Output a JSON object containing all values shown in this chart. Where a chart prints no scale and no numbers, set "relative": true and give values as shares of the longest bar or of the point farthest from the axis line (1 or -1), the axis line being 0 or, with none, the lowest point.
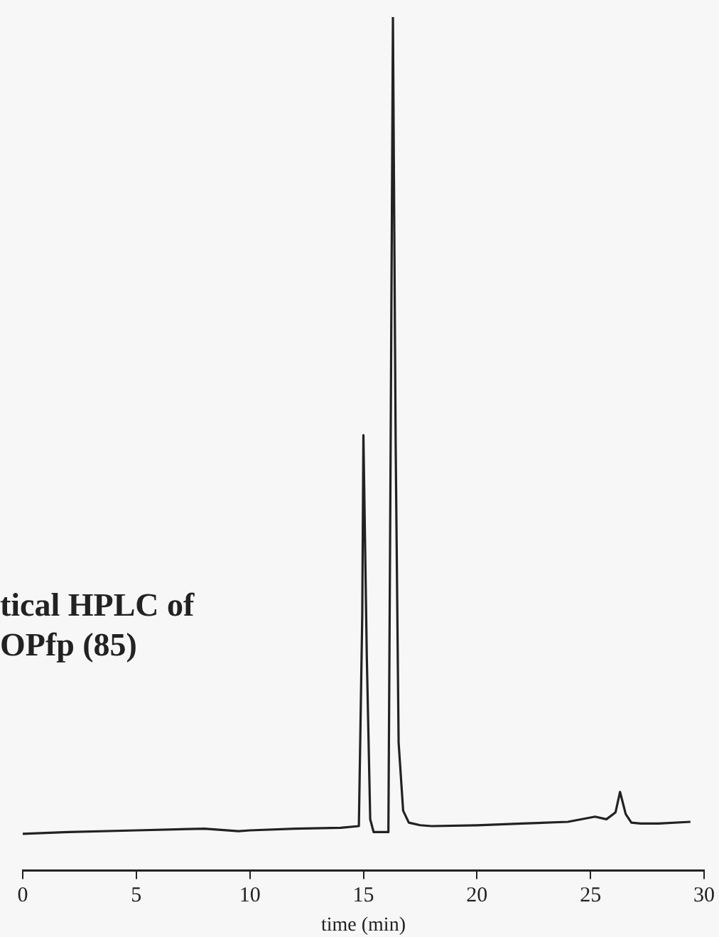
{
  "chart_data": {
    "type": "line",
    "relative": true,
    "title": "tical HPLC of\nOPfp (85)",
    "xlabel": "time (min)",
    "xlim": [
      0,
      30
    ],
    "xticks": [
      0,
      5,
      10,
      15,
      20,
      25,
      30
    ],
    "grid": false,
    "legend": false,
    "marker": "none",
    "line_style": "solid",
    "series": [
      {
        "color": "#222222",
        "x": [
          0,
          2,
          5,
          8,
          9.5,
          10,
          12,
          14,
          14.8,
          14.95,
          15.0,
          15.15,
          15.3,
          15.45,
          16.1,
          16.2,
          16.3,
          16.42,
          16.55,
          16.75,
          17.0,
          17.5,
          18,
          20,
          22,
          24,
          25.2,
          25.7,
          26.1,
          26.3,
          26.55,
          26.8,
          27.2,
          28,
          29.4
        ],
        "values": [
          0.043,
          0.045,
          0.047,
          0.049,
          0.046,
          0.047,
          0.049,
          0.05,
          0.052,
          0.3,
          0.51,
          0.25,
          0.06,
          0.045,
          0.045,
          0.5,
          1.0,
          0.5,
          0.15,
          0.07,
          0.056,
          0.053,
          0.052,
          0.053,
          0.055,
          0.057,
          0.063,
          0.06,
          0.068,
          0.092,
          0.066,
          0.056,
          0.055,
          0.055,
          0.057
        ]
      }
    ]
  }
}
